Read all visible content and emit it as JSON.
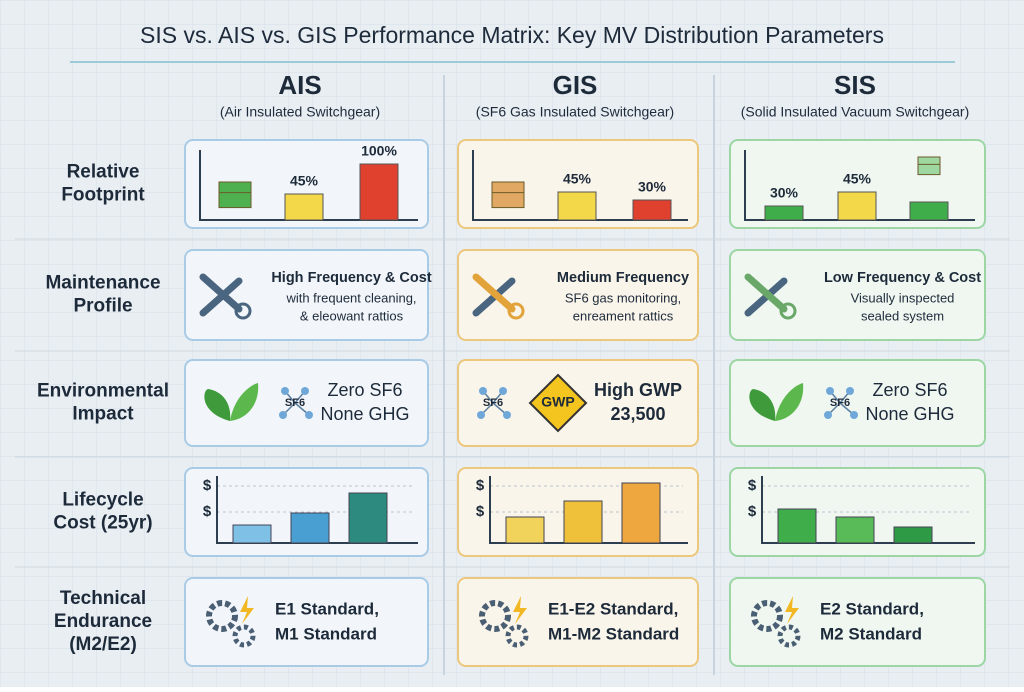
{
  "title": "SIS vs. AIS vs. GIS Performance Matrix: Key MV Distribution Parameters",
  "columns": [
    {
      "name": "AIS",
      "subtitle": "(Air Insulated Switchgear)"
    },
    {
      "name": "GIS",
      "subtitle": "(SF6 Gas Insulated Switchgear)"
    },
    {
      "name": "SIS",
      "subtitle": "(Solid Insulated Vacuum Switchgear)"
    }
  ],
  "rows": [
    {
      "label": [
        "Relative",
        "Footprint"
      ]
    },
    {
      "label": [
        "Maintenance",
        "Profile"
      ]
    },
    {
      "label": [
        "Environmental",
        "Impact"
      ]
    },
    {
      "label": [
        "Lifecycle",
        "Cost (25yr)"
      ]
    },
    {
      "label": [
        "Technical",
        "Endurance",
        "(M2/E2)"
      ]
    }
  ],
  "footprint": [
    [
      "45%",
      "100%"
    ],
    [
      "45%",
      "30%"
    ],
    [
      "30%",
      "45%"
    ]
  ],
  "maintenance": [
    {
      "heading": "High Frequency & Cost",
      "lines": [
        "with frequent cleaning,",
        "& eleowant rattios"
      ]
    },
    {
      "heading": "Medium Frequency",
      "lines": [
        "SF6 gas monitoring,",
        "enreament rattics"
      ]
    },
    {
      "heading": "Low Frequency & Cost",
      "lines": [
        "Visually inspected",
        "sealed system"
      ]
    }
  ],
  "environment": [
    {
      "molecule": "SF6",
      "lines": [
        "Zero SF6",
        "None GHG"
      ]
    },
    {
      "molecule": "SF6",
      "badge": "GWP",
      "lines": [
        "High GWP",
        "23,500"
      ]
    },
    {
      "molecule": "SF6",
      "lines": [
        "Zero SF6",
        "None GHG"
      ]
    }
  ],
  "lifecycle": [
    [
      "$",
      "$"
    ],
    [
      "$",
      "$"
    ],
    [
      "$",
      "$"
    ]
  ],
  "endurance": [
    [
      "E1 Standard,",
      "M1 Standard"
    ],
    [
      "E1-E2 Standard,",
      "M1-M2 Standard"
    ],
    [
      "E2 Standard,",
      "M2 Standard"
    ]
  ]
}
